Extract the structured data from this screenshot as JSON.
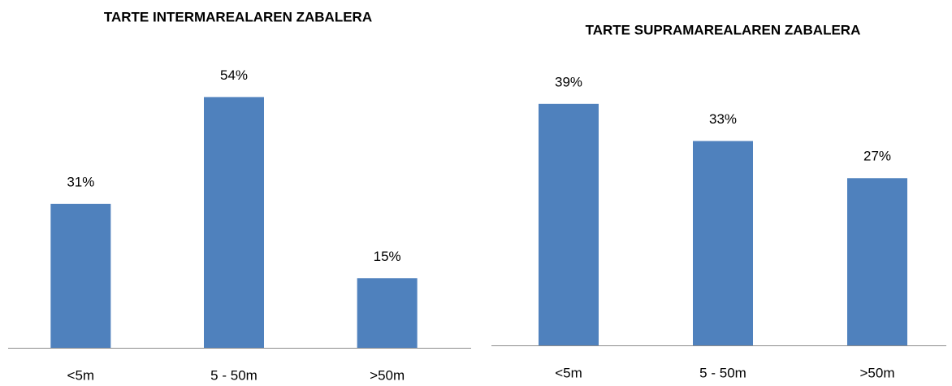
{
  "chart_data": [
    {
      "type": "bar",
      "title": "TARTE INTERMAREALAREN ZABALERA",
      "categories": [
        "<5m",
        "5 - 50m",
        ">50m"
      ],
      "values": [
        31,
        54,
        15
      ],
      "value_labels": [
        "31%",
        "54%",
        "15%"
      ],
      "color": "#4f81bd",
      "ylim": [
        0,
        70
      ]
    },
    {
      "type": "bar",
      "title": "TARTE SUPRAMAREALAREN ZABALERA",
      "categories": [
        "<5m",
        "5 - 50m",
        ">50m"
      ],
      "values": [
        39,
        33,
        27
      ],
      "value_labels": [
        "39%",
        "33%",
        "27%"
      ],
      "color": "#4f81bd",
      "ylim": [
        0,
        50
      ]
    }
  ]
}
